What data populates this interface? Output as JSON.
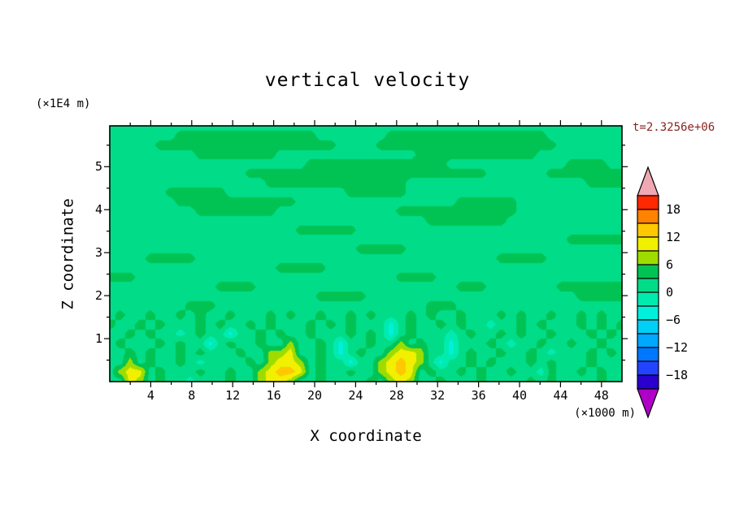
{
  "figure": {
    "title": "vertical velocity",
    "time_label": "t=2.3256e+06",
    "time_label_color": "#8B2323",
    "background": "#FFFFFF"
  },
  "axes": {
    "x": {
      "label": "X coordinate",
      "unit": "(×1000 m)",
      "min": 0,
      "max": 50,
      "ticks": [
        "4",
        "8",
        "12",
        "16",
        "20",
        "24",
        "28",
        "32",
        "36",
        "40",
        "44",
        "48"
      ],
      "minor_step": 2
    },
    "z": {
      "label": "Z coordinate",
      "unit": "(×1E4 m)",
      "min": 0,
      "max": 5.95,
      "ticks": [
        "1",
        "2",
        "3",
        "4",
        "5"
      ],
      "minor_step": 0.5
    }
  },
  "colorbar": {
    "contour_interval": 3,
    "value_min": -21,
    "value_max": 21,
    "segment_colors_bottom_to_top": [
      "#2A00D0",
      "#2244FF",
      "#0077FF",
      "#00A8FF",
      "#00D0F5",
      "#00F0DC",
      "#00EBAD",
      "#00DC87",
      "#00C353",
      "#9EDC00",
      "#F0F000",
      "#FFC800",
      "#FF8200",
      "#FF2800"
    ],
    "below_color": "#B000C8",
    "above_color": "#F0A8B4",
    "tick_labels_top_to_bottom": [
      "18",
      "12",
      "6",
      "0",
      "−6",
      "−12",
      "−18"
    ]
  },
  "chart_data": {
    "type": "heatmap",
    "title": "vertical velocity",
    "xlabel": "X coordinate (×1000 m)",
    "ylabel": "Z coordinate (×1E4 m)",
    "x_range": [
      0,
      50
    ],
    "z_range": [
      0,
      5.95
    ],
    "band_width": 3,
    "legend_position": "right-colorbar",
    "grid_on": false,
    "char_values": {
      ".": 1.5,
      "1": 4.5,
      "2": 7.5,
      "3": 10.5,
      "4": 13.5,
      "a": -1.5,
      "b": -4.5,
      "c": -7.5
    },
    "palette": [
      "#2A00D0",
      "#2244FF",
      "#0077FF",
      "#00A8FF",
      "#00D0F5",
      "#00F0DC",
      "#00EBAD",
      "#00DC87",
      "#00C353",
      "#9EDC00",
      "#F0F000",
      "#FFC800",
      "#FF8200",
      "#FF2800"
    ],
    "grid_rows_top_to_bottom": [
      "....................................................",
      ".......11111111111111.......1111111111111111........",
      ".....111111111111111111....111111111111111111.......",
      ".........11111111..............111111111111.........",
      "....................11111111111111............1111..",
      "..............111111111111111111111111......11111111",
      "................11111111111111..................1111",
      "......111111............111111......................",
      ".......111111111111................111111...........",
      ".........11111111............111111111111...........",
      "................................11111111............",
      "...................111111...........................",
      "..............................................111111",
      ".........................11111......................",
      "....11111..............................11111........",
      ".................11111..............................",
      "111..........................1111...................",
      "...........1111....................111.......1111111",
      ".....................11111.....................11111",
      "........111.....................111.................",
      ".1..1..1.1..1...1.1..1..1.1...1.1..1...1.1..1..1.1..",
      "1..1.1...1.1..1.1...1.1.1...b.1..1.1..a..1.1...1.1.1",
      "..1.1..a.1..b..1.1..1...1.1.b.1...a.1..1.1..1...1.1.",
      ".1...1.1..b.1..1..2..1.b..1..2.1..b...1.a..1..1..1..",
      "..1.1..1.1...1..223..1.b.1..2332..b.1..1..1.a...1.1.",
      "..2.1..1.a....1.2332.1..b..23432.b..1.1...1.1...1...",
      ".233.1...1..1..23443.1..1..2343.1..1.1..1..a1..1.1..",
      "..32.1..a...1..2332..1....1.232..1...1....1.1....1.."
    ]
  }
}
